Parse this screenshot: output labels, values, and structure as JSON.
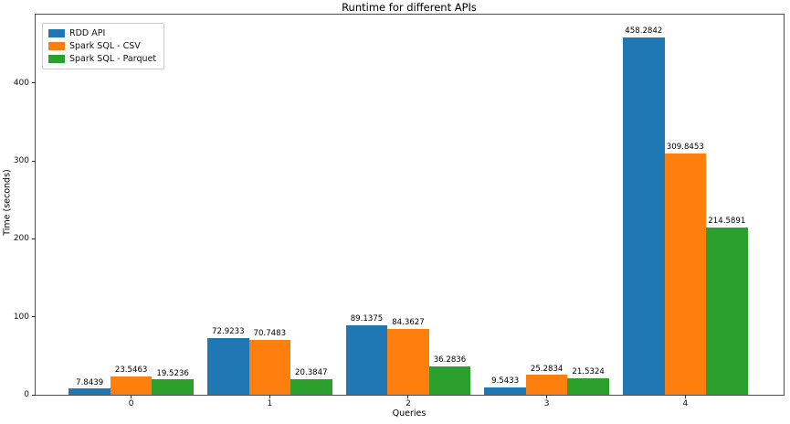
{
  "chart_data": {
    "type": "bar",
    "title": "Runtime for different APIs",
    "xlabel": "Queries",
    "ylabel": "Time (seconds)",
    "categories": [
      "0",
      "1",
      "2",
      "3",
      "4"
    ],
    "series": [
      {
        "name": "RDD API",
        "color": "#1f77b4",
        "offset": -0.3,
        "values": [
          7.8439,
          72.9233,
          89.1375,
          9.5433,
          458.2842
        ]
      },
      {
        "name": "Spark SQL - CSV",
        "color": "#ff7f0e",
        "offset": 0.0,
        "values": [
          23.5463,
          70.7483,
          84.3627,
          25.2834,
          309.8453
        ]
      },
      {
        "name": "Spark SQL - Parquet",
        "color": "#2ca02c",
        "offset": 0.3,
        "values": [
          19.5236,
          20.3847,
          36.2836,
          21.5324,
          214.5891
        ]
      }
    ],
    "bar_label_decimals": 4,
    "bar_width": 0.3,
    "yticks": [
      0,
      100,
      200,
      300,
      400
    ],
    "ylim": [
      0,
      487.5
    ],
    "xlim": [
      -0.69,
      4.71
    ],
    "grid": false,
    "legend_position": "upper left"
  }
}
